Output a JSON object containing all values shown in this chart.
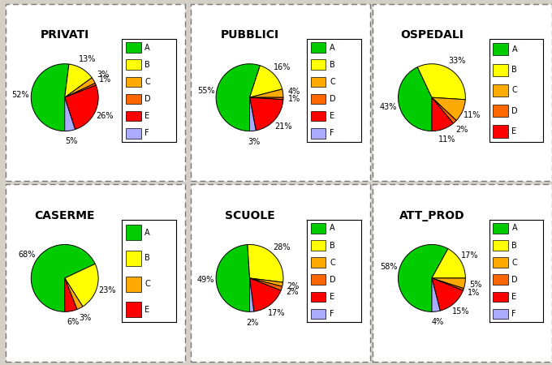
{
  "charts": [
    {
      "title": "PRIVATI",
      "values": [
        52,
        13,
        3,
        1,
        26,
        5
      ],
      "legend_labels": [
        "A",
        "B",
        "C",
        "D",
        "E",
        "F"
      ],
      "colors": [
        "#00cc00",
        "#ffff00",
        "#ffaa00",
        "#ff6600",
        "#ff0000",
        "#aaaaff"
      ]
    },
    {
      "title": "PUBBLICI",
      "values": [
        55,
        16,
        4,
        1,
        21,
        3
      ],
      "legend_labels": [
        "A",
        "B",
        "C",
        "D",
        "E",
        "F"
      ],
      "colors": [
        "#00cc00",
        "#ffff00",
        "#ffaa00",
        "#ff6600",
        "#ff0000",
        "#aaaaff"
      ]
    },
    {
      "title": "OSPEDALI",
      "values": [
        43,
        33,
        11,
        2,
        11
      ],
      "legend_labels": [
        "A",
        "B",
        "C",
        "D",
        "E"
      ],
      "colors": [
        "#00cc00",
        "#ffff00",
        "#ffaa00",
        "#ff6600",
        "#ff0000"
      ]
    },
    {
      "title": "CASERME",
      "values": [
        68,
        23,
        3,
        6
      ],
      "legend_labels": [
        "A",
        "B",
        "C",
        "E"
      ],
      "colors": [
        "#00cc00",
        "#ffff00",
        "#ffaa00",
        "#ff0000"
      ]
    },
    {
      "title": "SCUOLE",
      "values": [
        49,
        28,
        2,
        2,
        17,
        2
      ],
      "legend_labels": [
        "A",
        "B",
        "C",
        "D",
        "E",
        "F"
      ],
      "colors": [
        "#00cc00",
        "#ffff00",
        "#ffaa00",
        "#ff6600",
        "#ff0000",
        "#aaaaff"
      ]
    },
    {
      "title": "ATT_PROD",
      "values": [
        58,
        17,
        5,
        1,
        15,
        4
      ],
      "legend_labels": [
        "A",
        "B",
        "C",
        "D",
        "E",
        "F"
      ],
      "colors": [
        "#00cc00",
        "#ffff00",
        "#ffaa00",
        "#ff6600",
        "#ff0000",
        "#aaaaff"
      ]
    }
  ],
  "fig_bg": "#d4d0c8",
  "cell_bg": "#ffffff",
  "title_fontsize": 10,
  "pct_fontsize": 7,
  "legend_fontsize": 7
}
